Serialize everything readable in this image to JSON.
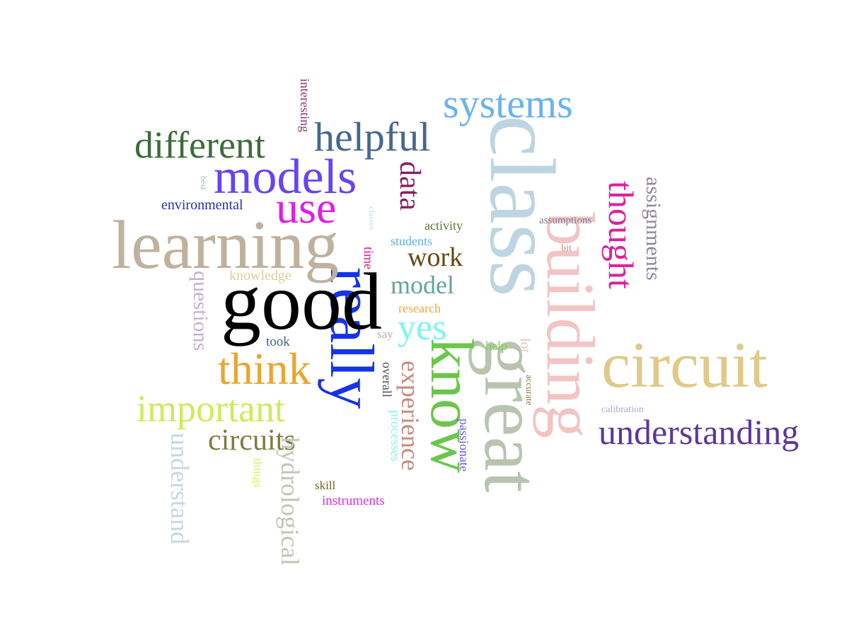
{
  "words": [
    {
      "text": "class",
      "color": "#bdd5e3",
      "vertical": true
    },
    {
      "text": "building",
      "color": "#f3c4c4",
      "vertical": true
    },
    {
      "text": "great",
      "color": "#b9c4b0",
      "vertical": true
    },
    {
      "text": "know",
      "color": "#6cc64c",
      "vertical": true
    },
    {
      "text": "really",
      "color": "#1533ea",
      "vertical": true
    },
    {
      "text": "good",
      "color": "#000000",
      "vertical": false
    },
    {
      "text": "learning",
      "color": "#c0b19f",
      "vertical": false
    },
    {
      "text": "circuit",
      "color": "#e0c989",
      "vertical": false
    },
    {
      "text": "systems",
      "color": "#6ab3f1",
      "vertical": false
    },
    {
      "text": "models",
      "color": "#6844f2",
      "vertical": false
    },
    {
      "text": "use",
      "color": "#e31be8",
      "vertical": false
    },
    {
      "text": "helpful",
      "color": "#456890",
      "vertical": false
    },
    {
      "text": "different",
      "color": "#3d6c3a",
      "vertical": false
    },
    {
      "text": "important",
      "color": "#cdec5d",
      "vertical": false
    },
    {
      "text": "think",
      "color": "#e9a62e",
      "vertical": false
    },
    {
      "text": "understanding",
      "color": "#5e3799",
      "vertical": false
    },
    {
      "text": "yes",
      "color": "#7ef5ee",
      "vertical": false
    },
    {
      "text": "thought",
      "color": "#df1f9d",
      "vertical": true
    },
    {
      "text": "data",
      "color": "#8b1e63",
      "vertical": true
    },
    {
      "text": "circuits",
      "color": "#7c7d3b",
      "vertical": false
    },
    {
      "text": "experience",
      "color": "#c48c7e",
      "vertical": true
    },
    {
      "text": "model",
      "color": "#61a59b",
      "vertical": false
    },
    {
      "text": "work",
      "color": "#67470f",
      "vertical": false
    },
    {
      "text": "questions",
      "color": "#c3b1d3",
      "vertical": true
    },
    {
      "text": "understand",
      "color": "#c6d6e4",
      "vertical": true
    },
    {
      "text": "hydrological",
      "color": "#c0c6b5",
      "vertical": true
    },
    {
      "text": "assignments",
      "color": "#8f86a3",
      "vertical": true
    },
    {
      "text": "environmental",
      "color": "#2331b8",
      "vertical": false
    },
    {
      "text": "knowledge",
      "color": "#e3cb9d",
      "vertical": false
    },
    {
      "text": "research",
      "color": "#f1a73c",
      "vertical": false
    },
    {
      "text": "students",
      "color": "#5ab0e6",
      "vertical": false
    },
    {
      "text": "activity",
      "color": "#5c7631",
      "vertical": false
    },
    {
      "text": "instruments",
      "color": "#dd2ee6",
      "vertical": false
    },
    {
      "text": "interesting",
      "color": "#8c3a6b",
      "vertical": true
    },
    {
      "text": "processes",
      "color": "#8ef1f3",
      "vertical": true
    },
    {
      "text": "passionate",
      "color": "#7157e8",
      "vertical": true
    },
    {
      "text": "overall",
      "color": "#4f4e55",
      "vertical": true
    },
    {
      "text": "assumptions",
      "color": "#7b7a94",
      "vertical": false
    },
    {
      "text": "took",
      "color": "#43608d",
      "vertical": false
    },
    {
      "text": "help",
      "color": "#7bcd54",
      "vertical": false
    },
    {
      "text": "lot",
      "color": "#ebc0c0",
      "vertical": true
    },
    {
      "text": "time",
      "color": "#e3138b",
      "vertical": true
    },
    {
      "text": "say",
      "color": "#bbb2a2",
      "vertical": false
    },
    {
      "text": "skill",
      "color": "#6b6e1b",
      "vertical": false
    },
    {
      "text": "things",
      "color": "#d6ee6d",
      "vertical": true
    },
    {
      "text": "calibration",
      "color": "#b5a1dc",
      "vertical": false
    },
    {
      "text": "bit",
      "color": "#b99382",
      "vertical": false
    },
    {
      "text": "accurate",
      "color": "#8c7a4b",
      "vertical": true
    },
    {
      "text": "best",
      "color": "#8fc5bd",
      "vertical": true
    },
    {
      "text": "classes",
      "color": "#c9dcea",
      "vertical": true
    }
  ]
}
